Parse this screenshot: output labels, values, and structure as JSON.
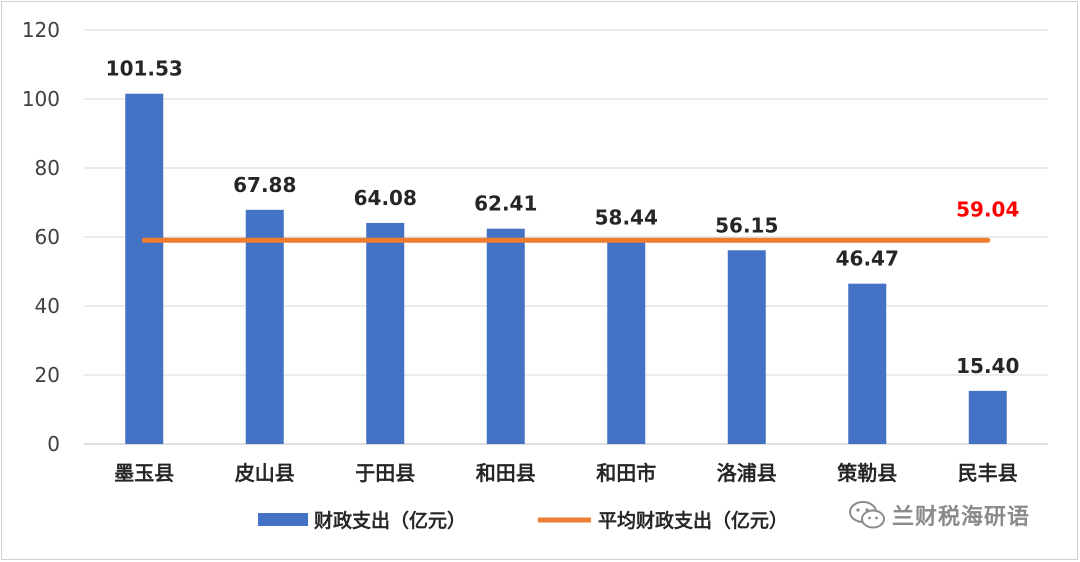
{
  "chart_data": {
    "type": "bar",
    "categories": [
      "墨玉县",
      "皮山县",
      "于田县",
      "和田县",
      "和田市",
      "洛浦县",
      "策勒县",
      "民丰县"
    ],
    "series": [
      {
        "name": "财政支出（亿元）",
        "type": "bar",
        "values": [
          101.53,
          67.88,
          64.08,
          62.41,
          58.44,
          56.15,
          46.47,
          15.4
        ],
        "labels": [
          "101.53",
          "67.88",
          "64.08",
          "62.41",
          "58.44",
          "56.15",
          "46.47",
          "15.40"
        ],
        "color": "#4472c4"
      },
      {
        "name": "平均财政支出（亿元）",
        "type": "line",
        "value": 59.04,
        "label": "59.04",
        "color": "#ed7d31",
        "label_color": "#ff0000"
      }
    ],
    "yticks": [
      "0",
      "20",
      "40",
      "60",
      "80",
      "100",
      "120"
    ],
    "ylim": [
      0,
      120
    ],
    "grid": true,
    "legend": "bottom"
  },
  "watermark": {
    "text": "兰财税海研语",
    "icon": "wechat-icon"
  }
}
